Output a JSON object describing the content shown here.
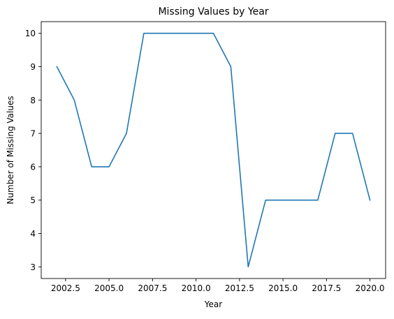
{
  "chart_data": {
    "type": "line",
    "title": "Missing Values by Year",
    "xlabel": "Year",
    "ylabel": "Number of Missing Values",
    "xlim": [
      2001.1,
      2020.9
    ],
    "ylim": [
      2.65,
      10.35
    ],
    "x_ticks": [
      2002.5,
      2005.0,
      2007.5,
      2010.0,
      2012.5,
      2015.0,
      2017.5,
      2020.0
    ],
    "x_tick_labels": [
      "2002.5",
      "2005.0",
      "2007.5",
      "2010.0",
      "2012.5",
      "2015.0",
      "2017.5",
      "2020.0"
    ],
    "y_ticks": [
      3,
      4,
      5,
      6,
      7,
      8,
      9,
      10
    ],
    "y_tick_labels": [
      "3",
      "4",
      "5",
      "6",
      "7",
      "8",
      "9",
      "10"
    ],
    "grid": false,
    "legend": "none",
    "series": [
      {
        "color": "#1f77b4",
        "x": [
          2002,
          2003,
          2004,
          2005,
          2006,
          2007,
          2008,
          2009,
          2010,
          2011,
          2012,
          2013,
          2014,
          2015,
          2016,
          2017,
          2018,
          2019,
          2020
        ],
        "y": [
          9,
          8,
          6,
          6,
          7,
          10,
          10,
          10,
          10,
          10,
          9,
          3,
          5,
          5,
          5,
          5,
          7,
          7,
          5
        ]
      }
    ]
  }
}
